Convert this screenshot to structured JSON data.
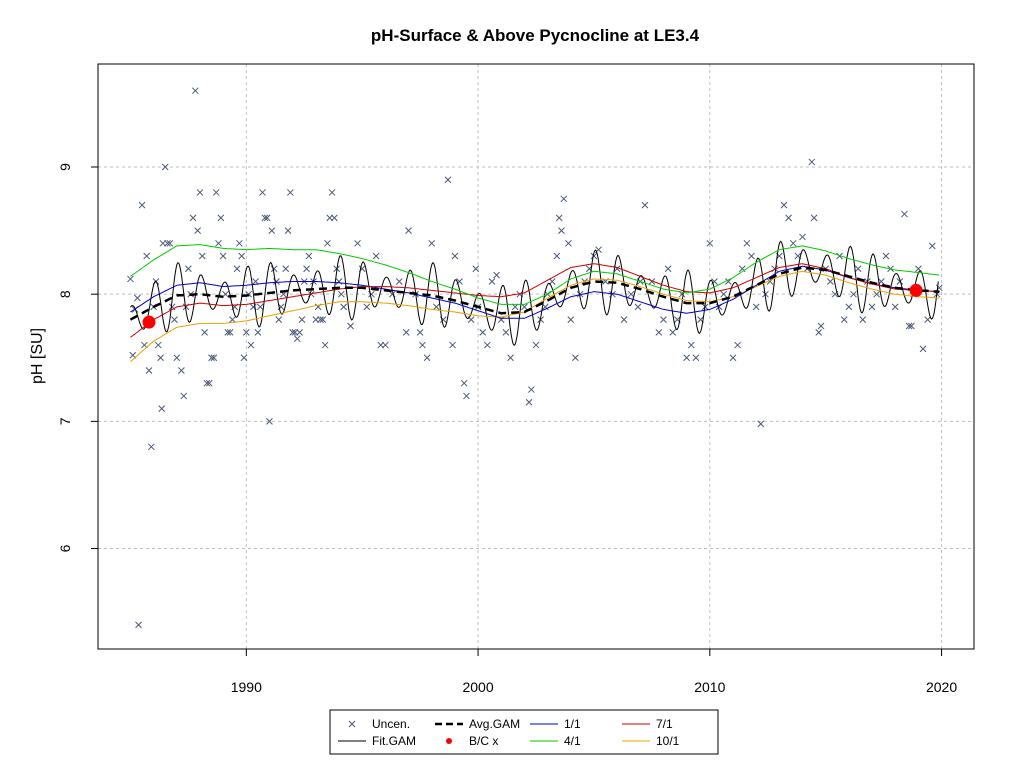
{
  "chart_data": {
    "type": "scatter",
    "title": "pH-Surface & Above Pycnocline at LE3.4",
    "xlabel": "",
    "ylabel": "pH [SU]",
    "xlim": [
      1983.6,
      2021.4
    ],
    "ylim": [
      5.21,
      9.81
    ],
    "x_ticks": [
      1990,
      2000,
      2010,
      2020
    ],
    "x_tick_labels": [
      "1990",
      "2000",
      "2010",
      "2020"
    ],
    "y_ticks": [
      6,
      7,
      8,
      9
    ],
    "y_tick_labels": [
      "6",
      "7",
      "8",
      "9"
    ],
    "grid": true,
    "legend_position": "bottom",
    "colors": {
      "points": "#4a5a78",
      "fit": "#000000",
      "avg": "#000000",
      "s1_1": "#0000cc",
      "s4_1": "#00cc00",
      "s7_1": "#cc0000",
      "s10_1": "#e8a000",
      "bc": "#ff0000",
      "grid": "#bfbfbf"
    },
    "legend": [
      {
        "label": "Uncen.",
        "symbol": "x",
        "color": "#4a5a78"
      },
      {
        "label": "Avg.GAM",
        "symbol": "dashed",
        "color": "#000000"
      },
      {
        "label": "1/1",
        "symbol": "line",
        "color": "#0000cc"
      },
      {
        "label": "7/1",
        "symbol": "line",
        "color": "#cc0000"
      },
      {
        "label": "Fit.GAM",
        "symbol": "line",
        "color": "#000000"
      },
      {
        "label": "B/C x",
        "symbol": "dot",
        "color": "#ff0000"
      },
      {
        "label": "4/1",
        "symbol": "line",
        "color": "#00cc00"
      },
      {
        "label": "10/1",
        "symbol": "line",
        "color": "#e8a000"
      }
    ],
    "series": [
      {
        "name": "Avg.GAM",
        "x": [
          1985.0,
          1986.0,
          1987.0,
          1988.0,
          1989.0,
          1990.0,
          1991.0,
          1992.0,
          1993.0,
          1994.0,
          1995.0,
          1996.0,
          1997.0,
          1998.0,
          1999.0,
          2000.0,
          2001.0,
          2002.0,
          2003.0,
          2004.0,
          2005.0,
          2006.0,
          2007.0,
          2008.0,
          2009.0,
          2010.0,
          2011.0,
          2012.0,
          2013.0,
          2014.0,
          2015.0,
          2016.0,
          2017.0,
          2018.0,
          2019.0,
          2019.9
        ],
        "y": [
          7.8,
          7.9,
          7.99,
          8.0,
          7.98,
          7.99,
          8.01,
          8.03,
          8.04,
          8.05,
          8.05,
          8.03,
          8.01,
          7.99,
          7.95,
          7.9,
          7.85,
          7.86,
          7.95,
          8.05,
          8.1,
          8.09,
          8.04,
          7.98,
          7.93,
          7.93,
          7.98,
          8.07,
          8.16,
          8.21,
          8.19,
          8.14,
          8.09,
          8.05,
          8.03,
          8.02
        ]
      },
      {
        "name": "1/1",
        "x": [
          1985.0,
          1986.0,
          1987.0,
          1988.0,
          1989.0,
          1990.0,
          1991.0,
          1992.0,
          1993.0,
          1994.0,
          1995.0,
          1996.0,
          1997.0,
          1998.0,
          1999.0,
          2000.0,
          2001.0,
          2002.0,
          2003.0,
          2004.0,
          2005.0,
          2006.0,
          2007.0,
          2008.0,
          2009.0,
          2010.0,
          2011.0,
          2012.0,
          2013.0,
          2014.0,
          2015.0,
          2016.0,
          2017.0,
          2018.0,
          2019.0,
          2019.9
        ],
        "y": [
          7.86,
          7.98,
          8.07,
          8.09,
          8.06,
          8.07,
          8.09,
          8.1,
          8.1,
          8.09,
          8.07,
          8.04,
          8.01,
          7.97,
          7.93,
          7.87,
          7.81,
          7.81,
          7.89,
          7.98,
          8.02,
          8.0,
          7.94,
          7.88,
          7.85,
          7.88,
          7.96,
          8.07,
          8.18,
          8.22,
          8.19,
          8.13,
          8.08,
          8.05,
          8.03,
          8.02
        ]
      },
      {
        "name": "4/1",
        "x": [
          1985.0,
          1986.0,
          1987.0,
          1988.0,
          1989.0,
          1990.0,
          1991.0,
          1992.0,
          1993.0,
          1994.0,
          1995.0,
          1996.0,
          1997.0,
          1998.0,
          1999.0,
          2000.0,
          2001.0,
          2002.0,
          2003.0,
          2004.0,
          2005.0,
          2006.0,
          2007.0,
          2008.0,
          2009.0,
          2010.0,
          2011.0,
          2012.0,
          2013.0,
          2014.0,
          2015.0,
          2016.0,
          2017.0,
          2018.0,
          2019.0,
          2019.9
        ],
        "y": [
          8.14,
          8.27,
          8.38,
          8.39,
          8.36,
          8.35,
          8.36,
          8.35,
          8.35,
          8.32,
          8.28,
          8.23,
          8.17,
          8.1,
          8.04,
          7.97,
          7.92,
          7.92,
          8.0,
          8.12,
          8.18,
          8.16,
          8.1,
          8.04,
          8.01,
          8.04,
          8.13,
          8.25,
          8.35,
          8.38,
          8.34,
          8.28,
          8.23,
          8.19,
          8.17,
          8.15
        ]
      },
      {
        "name": "7/1",
        "x": [
          1985.0,
          1986.0,
          1987.0,
          1988.0,
          1989.0,
          1990.0,
          1991.0,
          1992.0,
          1993.0,
          1994.0,
          1995.0,
          1996.0,
          1997.0,
          1998.0,
          1999.0,
          2000.0,
          2001.0,
          2002.0,
          2003.0,
          2004.0,
          2005.0,
          2006.0,
          2007.0,
          2008.0,
          2009.0,
          2010.0,
          2011.0,
          2012.0,
          2013.0,
          2014.0,
          2015.0,
          2016.0,
          2017.0,
          2018.0,
          2019.0,
          2019.9
        ],
        "y": [
          7.66,
          7.8,
          7.9,
          7.93,
          7.91,
          7.92,
          7.95,
          7.98,
          8.01,
          8.04,
          8.06,
          8.06,
          8.05,
          8.03,
          8.01,
          7.99,
          7.98,
          8.01,
          8.11,
          8.21,
          8.24,
          8.21,
          8.14,
          8.07,
          8.02,
          8.01,
          8.05,
          8.13,
          8.21,
          8.24,
          8.2,
          8.13,
          8.08,
          8.04,
          8.03,
          8.02
        ]
      },
      {
        "name": "10/1",
        "x": [
          1985.0,
          1986.0,
          1987.0,
          1988.0,
          1989.0,
          1990.0,
          1991.0,
          1992.0,
          1993.0,
          1994.0,
          1995.0,
          1996.0,
          1997.0,
          1998.0,
          1999.0,
          2000.0,
          2001.0,
          2002.0,
          2003.0,
          2004.0,
          2005.0,
          2006.0,
          2007.0,
          2008.0,
          2009.0,
          2010.0,
          2011.0,
          2012.0,
          2013.0,
          2014.0,
          2015.0,
          2016.0,
          2017.0,
          2018.0,
          2019.0,
          2019.9
        ],
        "y": [
          7.47,
          7.63,
          7.74,
          7.77,
          7.77,
          7.79,
          7.83,
          7.87,
          7.91,
          7.94,
          7.94,
          7.93,
          7.91,
          7.88,
          7.86,
          7.83,
          7.82,
          7.86,
          7.97,
          8.07,
          8.12,
          8.11,
          8.06,
          8.0,
          7.95,
          7.94,
          7.98,
          8.06,
          8.14,
          8.18,
          8.15,
          8.09,
          8.04,
          8.0,
          7.98,
          7.97
        ]
      }
    ],
    "fit_gam": {
      "name": "Fit.GAM",
      "x_start": 1985.0,
      "x_end": 2019.9,
      "step": 0.0417,
      "seasonal_amplitude": 0.26,
      "period_years": 1.0,
      "description_in_chart": "Fit.GAM"
    },
    "bc_points": [
      {
        "x": 1985.8,
        "y": 7.78
      },
      {
        "x": 2018.9,
        "y": 8.03
      }
    ],
    "uncensored_points": [
      [
        1985.0,
        8.12
      ],
      [
        1985.1,
        7.52
      ],
      [
        1985.2,
        7.88
      ],
      [
        1985.3,
        7.97
      ],
      [
        1985.35,
        5.4
      ],
      [
        1985.5,
        8.7
      ],
      [
        1985.6,
        7.6
      ],
      [
        1985.7,
        8.3
      ],
      [
        1985.8,
        7.4
      ],
      [
        1985.9,
        6.8
      ],
      [
        1986.0,
        7.9
      ],
      [
        1986.1,
        8.1
      ],
      [
        1986.2,
        7.6
      ],
      [
        1986.3,
        7.5
      ],
      [
        1986.35,
        7.1
      ],
      [
        1986.4,
        8.4
      ],
      [
        1986.5,
        9.0
      ],
      [
        1986.6,
        8.4
      ],
      [
        1986.7,
        8.4
      ],
      [
        1986.8,
        7.9
      ],
      [
        1986.9,
        7.8
      ],
      [
        1987.0,
        7.5
      ],
      [
        1987.2,
        7.4
      ],
      [
        1987.3,
        7.2
      ],
      [
        1987.4,
        7.9
      ],
      [
        1987.5,
        8.2
      ],
      [
        1987.6,
        8.0
      ],
      [
        1987.7,
        8.6
      ],
      [
        1987.8,
        9.6
      ],
      [
        1987.9,
        8.5
      ],
      [
        1988.0,
        8.8
      ],
      [
        1988.1,
        8.3
      ],
      [
        1988.2,
        7.7
      ],
      [
        1988.3,
        7.3
      ],
      [
        1988.4,
        7.3
      ],
      [
        1988.5,
        7.5
      ],
      [
        1988.6,
        7.5
      ],
      [
        1988.7,
        8.8
      ],
      [
        1988.8,
        8.4
      ],
      [
        1988.9,
        8.6
      ],
      [
        1989.0,
        8.3
      ],
      [
        1989.1,
        8.0
      ],
      [
        1989.2,
        7.7
      ],
      [
        1989.3,
        7.7
      ],
      [
        1989.4,
        7.8
      ],
      [
        1989.5,
        7.9
      ],
      [
        1989.6,
        8.2
      ],
      [
        1989.7,
        8.4
      ],
      [
        1989.8,
        8.3
      ],
      [
        1989.9,
        7.5
      ],
      [
        1990.0,
        7.7
      ],
      [
        1990.1,
        8.0
      ],
      [
        1990.2,
        7.6
      ],
      [
        1990.3,
        7.9
      ],
      [
        1990.4,
        8.1
      ],
      [
        1990.5,
        7.7
      ],
      [
        1990.6,
        7.9
      ],
      [
        1990.7,
        8.8
      ],
      [
        1990.8,
        8.6
      ],
      [
        1990.9,
        8.6
      ],
      [
        1991.0,
        7.0
      ],
      [
        1991.1,
        8.5
      ],
      [
        1991.2,
        8.2
      ],
      [
        1991.3,
        8.1
      ],
      [
        1991.4,
        7.8
      ],
      [
        1991.5,
        7.9
      ],
      [
        1991.6,
        8.0
      ],
      [
        1991.7,
        8.2
      ],
      [
        1991.8,
        8.5
      ],
      [
        1991.9,
        8.8
      ],
      [
        1992.0,
        7.7
      ],
      [
        1992.1,
        7.7
      ],
      [
        1992.2,
        7.65
      ],
      [
        1992.3,
        7.7
      ],
      [
        1992.4,
        7.8
      ],
      [
        1992.5,
        8.1
      ],
      [
        1992.6,
        8.2
      ],
      [
        1992.7,
        8.3
      ],
      [
        1992.8,
        8.0
      ],
      [
        1992.9,
        8.1
      ],
      [
        1993.0,
        7.8
      ],
      [
        1993.1,
        7.9
      ],
      [
        1993.2,
        7.8
      ],
      [
        1993.3,
        7.8
      ],
      [
        1993.4,
        7.6
      ],
      [
        1993.5,
        8.4
      ],
      [
        1993.6,
        8.6
      ],
      [
        1993.7,
        8.8
      ],
      [
        1993.8,
        8.6
      ],
      [
        1993.9,
        8.2
      ],
      [
        1994.0,
        8.1
      ],
      [
        1994.1,
        8.0
      ],
      [
        1994.2,
        7.9
      ],
      [
        1994.5,
        7.75
      ],
      [
        1994.8,
        8.4
      ],
      [
        1995.0,
        8.2
      ],
      [
        1995.2,
        7.9
      ],
      [
        1995.4,
        8.0
      ],
      [
        1995.6,
        8.3
      ],
      [
        1995.8,
        7.6
      ],
      [
        1996.0,
        7.6
      ],
      [
        1996.3,
        8.0
      ],
      [
        1996.6,
        8.1
      ],
      [
        1996.9,
        7.7
      ],
      [
        1997.0,
        8.5
      ],
      [
        1997.3,
        8.0
      ],
      [
        1997.5,
        7.7
      ],
      [
        1997.6,
        7.6
      ],
      [
        1997.8,
        7.5
      ],
      [
        1998.0,
        8.4
      ],
      [
        1998.2,
        7.9
      ],
      [
        1998.5,
        7.8
      ],
      [
        1998.7,
        8.9
      ],
      [
        1998.9,
        7.6
      ],
      [
        1999.0,
        8.3
      ],
      [
        1999.2,
        8.1
      ],
      [
        1999.4,
        7.3
      ],
      [
        1999.5,
        7.2
      ],
      [
        1999.7,
        7.8
      ],
      [
        1999.9,
        8.2
      ],
      [
        2000.0,
        7.9
      ],
      [
        2000.2,
        7.7
      ],
      [
        2000.4,
        7.6
      ],
      [
        2000.6,
        8.1
      ],
      [
        2000.8,
        8.15
      ],
      [
        2001.0,
        7.8
      ],
      [
        2001.2,
        7.7
      ],
      [
        2001.4,
        7.5
      ],
      [
        2001.6,
        7.9
      ],
      [
        2001.8,
        8.0
      ],
      [
        2002.0,
        7.9
      ],
      [
        2002.2,
        7.15
      ],
      [
        2002.3,
        7.25
      ],
      [
        2002.5,
        7.6
      ],
      [
        2002.7,
        7.8
      ],
      [
        2002.9,
        7.9
      ],
      [
        2003.0,
        8.0
      ],
      [
        2003.2,
        8.1
      ],
      [
        2003.4,
        8.3
      ],
      [
        2003.5,
        8.6
      ],
      [
        2003.6,
        8.5
      ],
      [
        2003.7,
        8.75
      ],
      [
        2003.9,
        8.4
      ],
      [
        2004.0,
        7.8
      ],
      [
        2004.2,
        7.5
      ],
      [
        2004.4,
        8.0
      ],
      [
        2004.6,
        8.1
      ],
      [
        2004.8,
        8.2
      ],
      [
        2005.0,
        8.3
      ],
      [
        2005.2,
        8.35
      ],
      [
        2005.5,
        8.1
      ],
      [
        2005.8,
        8.0
      ],
      [
        2006.0,
        8.2
      ],
      [
        2006.3,
        7.8
      ],
      [
        2006.6,
        8.0
      ],
      [
        2006.9,
        7.9
      ],
      [
        2007.0,
        8.1
      ],
      [
        2007.2,
        8.7
      ],
      [
        2007.5,
        8.1
      ],
      [
        2007.8,
        7.7
      ],
      [
        2008.0,
        7.8
      ],
      [
        2008.2,
        8.2
      ],
      [
        2008.4,
        7.7
      ],
      [
        2008.6,
        7.8
      ],
      [
        2008.8,
        8.0
      ],
      [
        2009.0,
        7.5
      ],
      [
        2009.2,
        7.6
      ],
      [
        2009.4,
        7.5
      ],
      [
        2009.6,
        7.8
      ],
      [
        2009.8,
        7.9
      ],
      [
        2010.0,
        8.4
      ],
      [
        2010.2,
        8.1
      ],
      [
        2010.4,
        7.9
      ],
      [
        2010.6,
        8.0
      ],
      [
        2010.8,
        8.1
      ],
      [
        2011.0,
        7.5
      ],
      [
        2011.2,
        7.6
      ],
      [
        2011.4,
        8.2
      ],
      [
        2011.6,
        8.4
      ],
      [
        2011.8,
        8.3
      ],
      [
        2012.0,
        7.9
      ],
      [
        2012.2,
        6.98
      ],
      [
        2012.4,
        8.0
      ],
      [
        2012.6,
        8.1
      ],
      [
        2012.8,
        8.2
      ],
      [
        2013.0,
        8.3
      ],
      [
        2013.2,
        8.7
      ],
      [
        2013.4,
        8.6
      ],
      [
        2013.6,
        8.4
      ],
      [
        2013.8,
        8.3
      ],
      [
        2014.0,
        8.45
      ],
      [
        2014.2,
        8.2
      ],
      [
        2014.4,
        9.04
      ],
      [
        2014.5,
        8.6
      ],
      [
        2014.7,
        7.7
      ],
      [
        2014.8,
        7.75
      ],
      [
        2015.0,
        8.2
      ],
      [
        2015.2,
        8.1
      ],
      [
        2015.4,
        8.0
      ],
      [
        2015.6,
        8.3
      ],
      [
        2015.8,
        7.8
      ],
      [
        2016.0,
        7.9
      ],
      [
        2016.2,
        8.0
      ],
      [
        2016.4,
        8.2
      ],
      [
        2016.6,
        7.8
      ],
      [
        2016.8,
        8.1
      ],
      [
        2017.0,
        7.9
      ],
      [
        2017.2,
        8.0
      ],
      [
        2017.4,
        8.1
      ],
      [
        2017.6,
        8.3
      ],
      [
        2017.8,
        8.2
      ],
      [
        2018.0,
        7.9
      ],
      [
        2018.2,
        8.1
      ],
      [
        2018.4,
        8.63
      ],
      [
        2018.6,
        7.75
      ],
      [
        2018.7,
        7.75
      ],
      [
        2018.8,
        8.0
      ],
      [
        2019.0,
        8.2
      ],
      [
        2019.2,
        7.57
      ],
      [
        2019.4,
        7.8
      ],
      [
        2019.6,
        8.38
      ],
      [
        2019.8,
        8.0
      ],
      [
        2019.9,
        8.05
      ]
    ]
  }
}
